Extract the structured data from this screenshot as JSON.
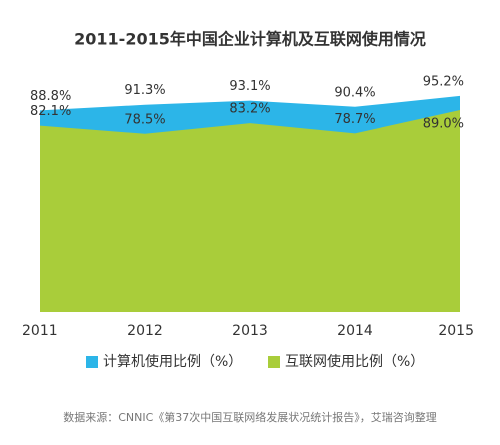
{
  "chart_data": {
    "type": "area",
    "title": "2011-2015年中国企业计算机及互联网使用情况",
    "categories": [
      "2011",
      "2012",
      "2013",
      "2014",
      "2015"
    ],
    "series": [
      {
        "name": "计算机使用比例（%）",
        "color": "#2cb5e8",
        "values": [
          88.8,
          91.3,
          93.1,
          90.4,
          95.2
        ],
        "value_labels": [
          "88.8%",
          "91.3%",
          "93.1%",
          "90.4%",
          "95.2%"
        ]
      },
      {
        "name": "互联网使用比例（%）",
        "color": "#a9cd3a",
        "values": [
          82.1,
          78.5,
          83.2,
          78.7,
          89.0
        ],
        "value_labels": [
          "82.1%",
          "78.5%",
          "83.2%",
          "78.7%",
          "89.0%"
        ]
      }
    ],
    "ylim": [
      0,
      100
    ],
    "source": "数据来源：CNNIC《第37次中国互联网络发展状况统计报告》，艾瑞咨询整理"
  }
}
